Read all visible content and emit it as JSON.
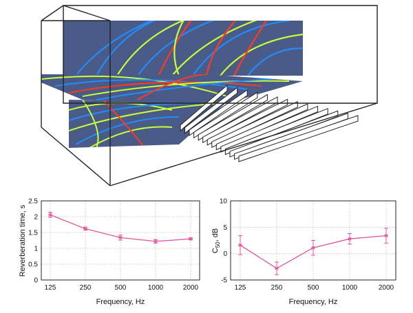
{
  "colors": {
    "series": "#e0559a",
    "grid": "#bdbdbd",
    "axis": "#222222",
    "wall": "#4a5a86",
    "wave_hot": "#ff3b1f",
    "wave_mid": "#c8ff3a",
    "wave_cool": "#1f8dff"
  },
  "chart_data": [
    {
      "type": "line",
      "title": "",
      "xlabel": "Frequency, Hz",
      "ylabel": "Reverberation time,  s",
      "categories": [
        "125",
        "250",
        "500",
        "1000",
        "2000"
      ],
      "x_scale": "log",
      "ylim": [
        0,
        2.5
      ],
      "yticks": [
        "0",
        "0.5",
        "1",
        "1.5",
        "2",
        "2.5"
      ],
      "grid": true,
      "marker": "asterisk",
      "series": [
        {
          "values": [
            2.06,
            1.62,
            1.34,
            1.22,
            1.3
          ],
          "error": [
            0.08,
            0.05,
            0.08,
            0.06,
            0.03
          ]
        }
      ]
    },
    {
      "type": "line",
      "title": "",
      "xlabel": "Frequency, Hz",
      "ylabel": "C",
      "ylabel_sub": "50",
      "ylabel_unit": ", dB",
      "categories": [
        "125",
        "250",
        "500",
        "1000",
        "2000"
      ],
      "x_scale": "log",
      "ylim": [
        -5,
        10
      ],
      "yticks": [
        "-5",
        "0",
        "5",
        "10"
      ],
      "grid": true,
      "marker": "asterisk",
      "series": [
        {
          "values": [
            1.6,
            -2.8,
            1.1,
            2.8,
            3.4
          ],
          "error": [
            1.8,
            1.2,
            1.4,
            1.0,
            1.4
          ]
        }
      ]
    }
  ]
}
